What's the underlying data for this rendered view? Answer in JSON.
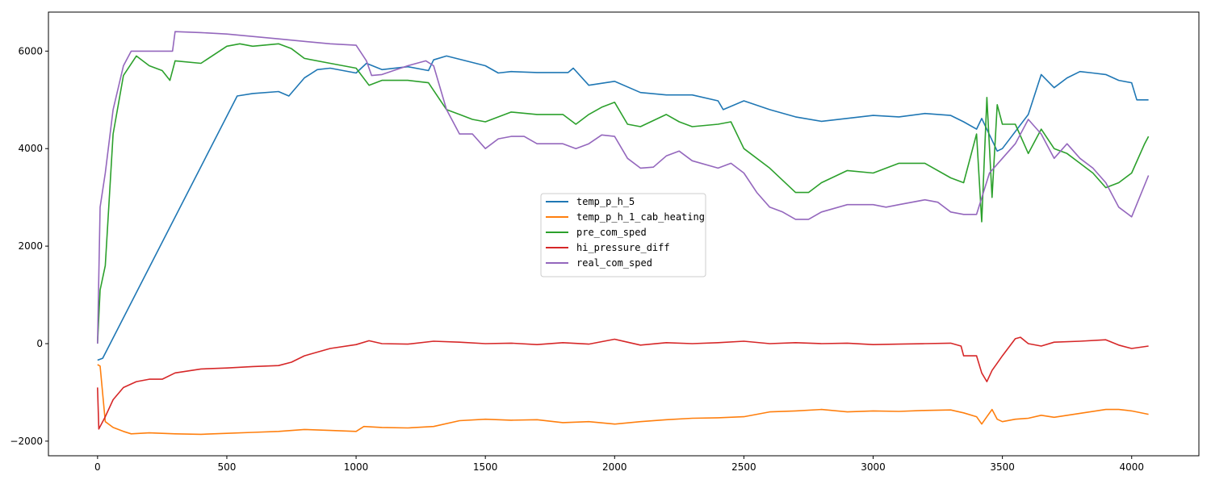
{
  "chart_data": {
    "type": "line",
    "title": "",
    "xlabel": "",
    "ylabel": "",
    "xlim": [
      -190,
      4260
    ],
    "ylim": [
      -2300,
      6800
    ],
    "xticks": [
      0,
      500,
      1000,
      1500,
      2000,
      2500,
      3000,
      3500,
      4000
    ],
    "yticks": [
      -2000,
      0,
      2000,
      4000,
      6000
    ],
    "grid": false,
    "legend_position": "center",
    "series": [
      {
        "name": "temp_p_h_5",
        "color": "#1f77b4",
        "x": [
          0,
          20,
          540,
          600,
          700,
          740,
          800,
          850,
          900,
          1000,
          1040,
          1100,
          1200,
          1280,
          1300,
          1350,
          1500,
          1550,
          1600,
          1700,
          1820,
          1840,
          1900,
          2000,
          2100,
          2200,
          2300,
          2400,
          2420,
          2500,
          2600,
          2700,
          2800,
          3000,
          3100,
          3200,
          3300,
          3350,
          3400,
          3420,
          3480,
          3500,
          3600,
          3650,
          3700,
          3750,
          3800,
          3850,
          3900,
          3950,
          4000,
          4020,
          4065
        ],
        "y": [
          -340,
          -300,
          5080,
          5130,
          5170,
          5080,
          5450,
          5620,
          5650,
          5550,
          5750,
          5620,
          5680,
          5600,
          5820,
          5900,
          5700,
          5550,
          5580,
          5560,
          5560,
          5650,
          5300,
          5380,
          5150,
          5100,
          5100,
          4980,
          4800,
          4980,
          4800,
          4650,
          4560,
          4680,
          4650,
          4720,
          4680,
          4550,
          4400,
          4620,
          3950,
          4000,
          4700,
          5520,
          5250,
          5450,
          5580,
          5550,
          5520,
          5400,
          5350,
          5000,
          5000
        ]
      },
      {
        "name": "temp_p_h_1_cab_heating",
        "color": "#ff7f0e",
        "x": [
          0,
          10,
          30,
          60,
          100,
          130,
          200,
          300,
          400,
          500,
          600,
          700,
          800,
          900,
          1000,
          1030,
          1100,
          1200,
          1300,
          1400,
          1500,
          1600,
          1700,
          1800,
          1900,
          2000,
          2100,
          2200,
          2300,
          2400,
          2500,
          2600,
          2700,
          2800,
          2900,
          3000,
          3100,
          3200,
          3300,
          3350,
          3400,
          3420,
          3440,
          3460,
          3480,
          3500,
          3550,
          3600,
          3650,
          3700,
          3800,
          3900,
          3950,
          4000,
          4065
        ],
        "y": [
          -430,
          -460,
          -1600,
          -1720,
          -1800,
          -1850,
          -1830,
          -1850,
          -1860,
          -1840,
          -1820,
          -1800,
          -1760,
          -1780,
          -1800,
          -1700,
          -1720,
          -1730,
          -1700,
          -1580,
          -1550,
          -1570,
          -1560,
          -1620,
          -1600,
          -1650,
          -1600,
          -1560,
          -1530,
          -1520,
          -1500,
          -1400,
          -1380,
          -1350,
          -1400,
          -1380,
          -1390,
          -1370,
          -1360,
          -1420,
          -1500,
          -1650,
          -1500,
          -1350,
          -1550,
          -1600,
          -1550,
          -1530,
          -1470,
          -1510,
          -1430,
          -1350,
          -1350,
          -1380,
          -1450
        ]
      },
      {
        "name": "pre_com_sped",
        "color": "#2ca02c",
        "x": [
          0,
          10,
          30,
          60,
          100,
          150,
          200,
          250,
          280,
          300,
          400,
          500,
          550,
          600,
          700,
          750,
          800,
          900,
          1000,
          1050,
          1100,
          1200,
          1280,
          1350,
          1400,
          1450,
          1500,
          1600,
          1700,
          1800,
          1850,
          1900,
          1950,
          2000,
          2050,
          2100,
          2200,
          2250,
          2300,
          2400,
          2450,
          2500,
          2600,
          2700,
          2750,
          2800,
          2900,
          3000,
          3100,
          3200,
          3300,
          3350,
          3400,
          3420,
          3440,
          3460,
          3480,
          3500,
          3550,
          3600,
          3650,
          3700,
          3750,
          3800,
          3850,
          3900,
          3950,
          4000,
          4050,
          4065
        ],
        "y": [
          0,
          1100,
          1600,
          4300,
          5500,
          5900,
          5700,
          5600,
          5400,
          5800,
          5750,
          6100,
          6150,
          6100,
          6150,
          6050,
          5850,
          5750,
          5650,
          5300,
          5400,
          5400,
          5350,
          4800,
          4700,
          4600,
          4550,
          4750,
          4700,
          4700,
          4500,
          4700,
          4850,
          4950,
          4500,
          4450,
          4700,
          4550,
          4450,
          4500,
          4550,
          4000,
          3600,
          3100,
          3100,
          3300,
          3550,
          3500,
          3700,
          3700,
          3400,
          3300,
          4300,
          2500,
          5050,
          3000,
          4900,
          4500,
          4500,
          3900,
          4400,
          4000,
          3900,
          3700,
          3500,
          3200,
          3300,
          3500,
          4100,
          4250
        ]
      },
      {
        "name": "hi_pressure_diff",
        "color": "#d62728",
        "x": [
          0,
          5,
          30,
          60,
          100,
          150,
          200,
          250,
          300,
          400,
          500,
          600,
          700,
          750,
          800,
          900,
          1000,
          1050,
          1100,
          1200,
          1300,
          1400,
          1500,
          1600,
          1700,
          1800,
          1900,
          2000,
          2050,
          2100,
          2200,
          2300,
          2400,
          2500,
          2600,
          2700,
          2800,
          2900,
          3000,
          3100,
          3200,
          3300,
          3340,
          3350,
          3400,
          3420,
          3440,
          3460,
          3480,
          3500,
          3550,
          3570,
          3600,
          3650,
          3700,
          3800,
          3900,
          3950,
          4000,
          4065
        ],
        "y": [
          -900,
          -1750,
          -1500,
          -1150,
          -900,
          -780,
          -730,
          -730,
          -600,
          -520,
          -500,
          -470,
          -450,
          -380,
          -250,
          -100,
          -20,
          60,
          0,
          -10,
          50,
          30,
          0,
          10,
          -20,
          20,
          -10,
          90,
          30,
          -30,
          20,
          0,
          20,
          50,
          0,
          20,
          0,
          10,
          -20,
          -10,
          0,
          10,
          -50,
          -250,
          -250,
          -600,
          -780,
          -550,
          -400,
          -250,
          100,
          130,
          0,
          -50,
          30,
          50,
          80,
          -30,
          -100,
          -50
        ]
      },
      {
        "name": "real_com_sped",
        "color": "#9467bd",
        "x": [
          0,
          10,
          30,
          60,
          100,
          130,
          200,
          250,
          290,
          300,
          400,
          500,
          600,
          700,
          800,
          900,
          1000,
          1040,
          1060,
          1100,
          1200,
          1270,
          1300,
          1350,
          1400,
          1450,
          1500,
          1550,
          1600,
          1650,
          1700,
          1800,
          1850,
          1900,
          1950,
          2000,
          2050,
          2100,
          2150,
          2200,
          2250,
          2300,
          2400,
          2450,
          2500,
          2550,
          2600,
          2650,
          2700,
          2750,
          2800,
          2900,
          3000,
          3050,
          3100,
          3200,
          3250,
          3300,
          3350,
          3400,
          3450,
          3500,
          3550,
          3600,
          3650,
          3700,
          3750,
          3800,
          3850,
          3900,
          3950,
          4000,
          4065
        ],
        "y": [
          0,
          2800,
          3500,
          4800,
          5700,
          6000,
          6000,
          6000,
          6000,
          6400,
          6380,
          6350,
          6300,
          6250,
          6200,
          6150,
          6120,
          5800,
          5500,
          5520,
          5700,
          5800,
          5700,
          4800,
          4300,
          4300,
          4000,
          4200,
          4250,
          4250,
          4100,
          4100,
          4000,
          4100,
          4280,
          4250,
          3800,
          3600,
          3620,
          3850,
          3950,
          3750,
          3600,
          3700,
          3500,
          3100,
          2800,
          2700,
          2550,
          2550,
          2700,
          2850,
          2850,
          2800,
          2850,
          2950,
          2900,
          2700,
          2650,
          2650,
          3500,
          3800,
          4100,
          4600,
          4300,
          3800,
          4100,
          3800,
          3600,
          3300,
          2800,
          2600,
          3450
        ]
      }
    ]
  }
}
